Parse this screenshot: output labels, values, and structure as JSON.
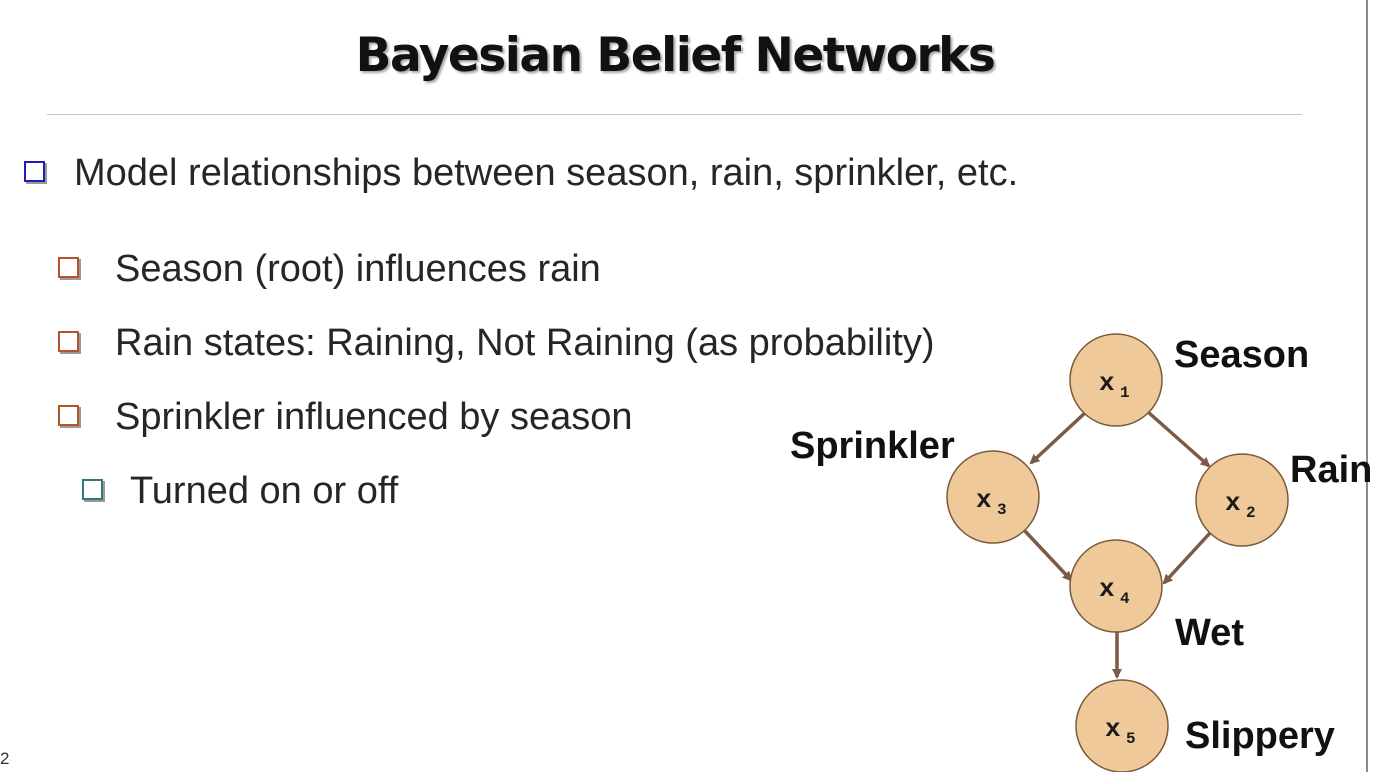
{
  "slide": {
    "title": "Bayesian Belief Networks",
    "page_number": "2"
  },
  "bullets": [
    {
      "text": "Model relationships between season, rain, sprinkler, etc.",
      "box_color": "#1f1fb3"
    },
    {
      "text": "Season (root) influences rain",
      "box_color": "#b0552c"
    },
    {
      "text": "Rain states: Raining, Not Raining (as probability)",
      "box_color": "#b0552c"
    },
    {
      "text": "Sprinkler influenced by season",
      "box_color": "#b0552c"
    },
    {
      "text": "Turned on or off",
      "box_color": "#2d7a7a"
    }
  ],
  "network": {
    "node_fill": "#f0c99a",
    "node_stroke": "#7a5a3a",
    "edge_color": "#7b5a47",
    "nodes": [
      {
        "id": "x1",
        "symbol": "x",
        "sub": "1",
        "label": "Season"
      },
      {
        "id": "x2",
        "symbol": "x",
        "sub": "2",
        "label": "Rain"
      },
      {
        "id": "x3",
        "symbol": "x",
        "sub": "3",
        "label": "Sprinkler"
      },
      {
        "id": "x4",
        "symbol": "x",
        "sub": "4",
        "label": "Wet"
      },
      {
        "id": "x5",
        "symbol": "x",
        "sub": "5",
        "label": "Slippery"
      }
    ],
    "edges": [
      {
        "from": "x1",
        "to": "x3"
      },
      {
        "from": "x1",
        "to": "x2"
      },
      {
        "from": "x3",
        "to": "x4"
      },
      {
        "from": "x2",
        "to": "x4"
      },
      {
        "from": "x4",
        "to": "x5"
      }
    ]
  }
}
